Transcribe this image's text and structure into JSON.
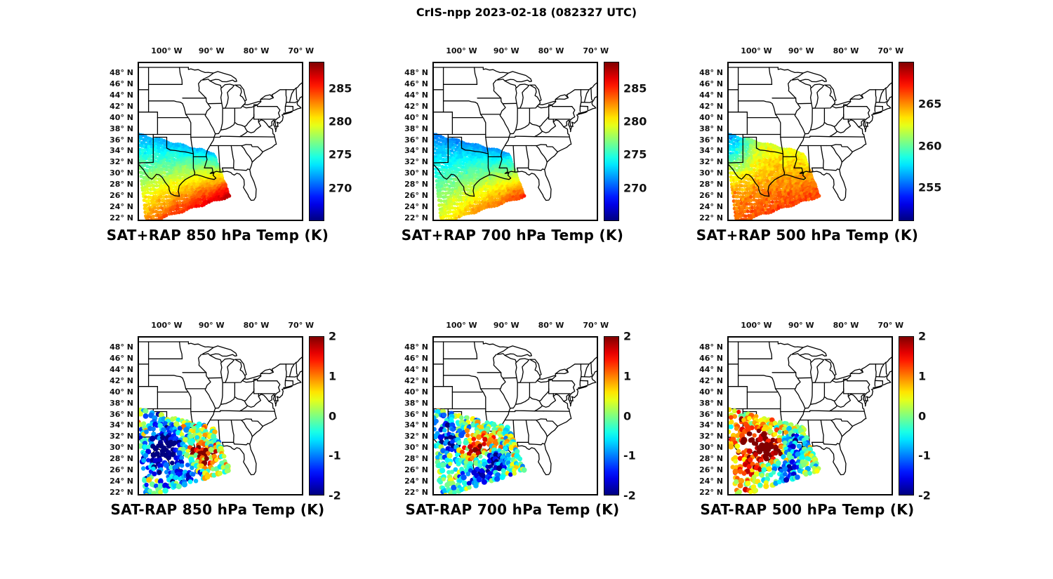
{
  "figure": {
    "title": "CrIS-npp 2023-02-18 (082327 UTC)",
    "background": "#ffffff",
    "colormap": "jet",
    "map_outline_color": "#000000",
    "text_color": "#111111"
  },
  "axes": {
    "lon_range": [
      -106.5,
      -69.5
    ],
    "lat_range": [
      21.5,
      50.0
    ],
    "lon_ticks": [
      {
        "lon": -100,
        "label": "100° W"
      },
      {
        "lon": -90,
        "label": "90° W"
      },
      {
        "lon": -80,
        "label": "80° W"
      },
      {
        "lon": -70,
        "label": "70° W"
      }
    ],
    "lat_ticks": [
      {
        "lat": 48,
        "label": "48° N"
      },
      {
        "lat": 46,
        "label": "46° N"
      },
      {
        "lat": 44,
        "label": "44° N"
      },
      {
        "lat": 42,
        "label": "42° N"
      },
      {
        "lat": 40,
        "label": "40° N"
      },
      {
        "lat": 38,
        "label": "38° N"
      },
      {
        "lat": 36,
        "label": "36° N"
      },
      {
        "lat": 34,
        "label": "34° N"
      },
      {
        "lat": 32,
        "label": "32° N"
      },
      {
        "lat": 30,
        "label": "30° N"
      },
      {
        "lat": 28,
        "label": "28° N"
      },
      {
        "lat": 26,
        "label": "26° N"
      },
      {
        "lat": 24,
        "label": "24° N"
      },
      {
        "lat": 22,
        "label": "22° N"
      }
    ]
  },
  "chart_data": [
    {
      "id": "sat_plus_rap_850",
      "type": "scatter-map",
      "seed": 11,
      "title": "SAT+RAP 850 hPa Temp (K)",
      "quantity": "SAT+RAP",
      "level_hPa": 850,
      "units": "K",
      "colorbar": {
        "min": 265,
        "max": 289,
        "tick_values": [
          285,
          280,
          275,
          270
        ],
        "tick_labels": [
          "285",
          "280",
          "275",
          "270"
        ],
        "increases": "upward"
      },
      "swath_corners_lonlat": [
        [
          -106.8,
          37.0
        ],
        [
          -89.6,
          33.6
        ],
        [
          -86.0,
          26.0
        ],
        [
          -104.5,
          21.3
        ]
      ],
      "field_model": {
        "kind": "gradient",
        "base_K": 272,
        "south_increase_K": 11,
        "southeast_increase_K": 4,
        "east_increase_K": 0.5,
        "nw_dip_K": 0,
        "noise_K": 0.7
      },
      "approx_values_K": {
        "north_edge": 272,
        "center": 278,
        "gulf_south": 287
      },
      "dots": {
        "cols": 34,
        "rows": 26,
        "radius_px": 2.6,
        "dropout": 0
      }
    },
    {
      "id": "sat_plus_rap_700",
      "type": "scatter-map",
      "seed": 23,
      "title": "SAT+RAP 700 hPa Temp (K)",
      "quantity": "SAT+RAP",
      "level_hPa": 700,
      "units": "K",
      "colorbar": {
        "min": 265,
        "max": 289,
        "tick_values": [
          285,
          280,
          275,
          270
        ],
        "tick_labels": [
          "285",
          "280",
          "275",
          "270"
        ],
        "increases": "upward"
      },
      "swath_corners_lonlat": [
        [
          -106.8,
          37.0
        ],
        [
          -89.6,
          33.6
        ],
        [
          -86.0,
          26.0
        ],
        [
          -104.5,
          21.3
        ]
      ],
      "field_model": {
        "kind": "gradient",
        "base_K": 271,
        "south_increase_K": 9,
        "southeast_increase_K": 4,
        "east_increase_K": 0.8,
        "nw_dip_K": 0,
        "noise_K": 0.7
      },
      "approx_values_K": {
        "north_edge": 271,
        "center": 276,
        "gulf_south": 284
      },
      "dots": {
        "cols": 34,
        "rows": 26,
        "radius_px": 2.6,
        "dropout": 0
      }
    },
    {
      "id": "sat_plus_rap_500",
      "type": "scatter-map",
      "seed": 37,
      "title": "SAT+RAP 500 hPa Temp (K)",
      "quantity": "SAT+RAP",
      "level_hPa": 500,
      "units": "K",
      "colorbar": {
        "min": 251,
        "max": 270,
        "tick_values": [
          265,
          260,
          255
        ],
        "tick_labels": [
          "265",
          "260",
          "255"
        ],
        "increases": "upward"
      },
      "swath_corners_lonlat": [
        [
          -106.8,
          37.0
        ],
        [
          -89.6,
          33.6
        ],
        [
          -86.0,
          26.0
        ],
        [
          -104.5,
          21.3
        ]
      ],
      "field_model": {
        "kind": "gradient",
        "base_K": 262.5,
        "south_increase_K": 3.5,
        "southeast_increase_K": 0.5,
        "east_increase_K": 0,
        "nw_dip_K": 6.5,
        "noise_K": 0.8
      },
      "approx_values_K": {
        "northwest_corner": 256,
        "center": 263,
        "south_edge": 266
      },
      "dots": {
        "cols": 34,
        "rows": 26,
        "radius_px": 2.6,
        "dropout": 0
      }
    },
    {
      "id": "sat_minus_rap_850",
      "type": "scatter-map",
      "seed": 41,
      "title": "SAT-RAP 850 hPa Temp (K)",
      "quantity": "SAT-RAP",
      "level_hPa": 850,
      "units": "K",
      "colorbar": {
        "min": -2,
        "max": 2,
        "tick_values": [
          2,
          1,
          0,
          -1,
          -2
        ],
        "tick_labels": [
          "2",
          "1",
          "0",
          "-1",
          "-2"
        ],
        "increases": "upward"
      },
      "swath_corners_lonlat": [
        [
          -106.8,
          37.0
        ],
        [
          -89.6,
          33.6
        ],
        [
          -86.0,
          26.0
        ],
        [
          -104.5,
          21.3
        ]
      ],
      "field_model": {
        "kind": "anomaly-blobs",
        "base_K": 0,
        "noise_K": 1.2,
        "blobs": [
          {
            "u": 0.72,
            "v": 0.52,
            "r": 0.16,
            "amp_K": 2.4
          },
          {
            "u": 0.78,
            "v": 0.75,
            "r": 0.14,
            "amp_K": 1.6
          },
          {
            "u": 0.38,
            "v": 0.45,
            "r": 0.22,
            "amp_K": -2.0
          },
          {
            "u": 0.15,
            "v": 0.6,
            "r": 0.2,
            "amp_K": -1.6
          },
          {
            "u": 0.5,
            "v": 0.9,
            "r": 0.25,
            "amp_K": -1.2
          },
          {
            "u": 0.3,
            "v": 0.2,
            "r": 0.2,
            "amp_K": -1.0
          }
        ]
      },
      "approx_values_K": {
        "range": [
          -2,
          2
        ],
        "red_cluster_lonlat": [
          -92.5,
          29.5
        ],
        "blue_area": "central and western swath"
      },
      "dots": {
        "cols": 30,
        "rows": 19,
        "radius_px": 3.6,
        "dropout": 0.3
      }
    },
    {
      "id": "sat_minus_rap_700",
      "type": "scatter-map",
      "seed": 53,
      "title": "SAT-RAP 700 hPa Temp (K)",
      "quantity": "SAT-RAP",
      "level_hPa": 700,
      "units": "K",
      "colorbar": {
        "min": -2,
        "max": 2,
        "tick_values": [
          2,
          1,
          0,
          -1,
          -2
        ],
        "tick_labels": [
          "2",
          "1",
          "0",
          "-1",
          "-2"
        ],
        "increases": "upward"
      },
      "swath_corners_lonlat": [
        [
          -106.8,
          37.0
        ],
        [
          -89.6,
          33.6
        ],
        [
          -86.0,
          26.0
        ],
        [
          -104.5,
          21.3
        ]
      ],
      "field_model": {
        "kind": "anomaly-blobs",
        "base_K": 0,
        "noise_K": 1.1,
        "blobs": [
          {
            "u": 0.45,
            "v": 0.5,
            "r": 0.18,
            "amp_K": 2.2
          },
          {
            "u": 0.68,
            "v": 0.42,
            "r": 0.14,
            "amp_K": 1.4
          },
          {
            "u": 0.72,
            "v": 0.62,
            "r": 0.16,
            "amp_K": -2.0
          },
          {
            "u": 0.25,
            "v": 0.45,
            "r": 0.2,
            "amp_K": -1.2
          },
          {
            "u": 0.5,
            "v": 0.85,
            "r": 0.22,
            "amp_K": -1.6
          },
          {
            "u": 0.15,
            "v": 0.25,
            "r": 0.18,
            "amp_K": -1.4
          }
        ]
      },
      "approx_values_K": {
        "range": [
          -2,
          2
        ],
        "red_cluster_lonlat": [
          -97.5,
          29.5
        ],
        "blue_area": "coastal east and south of swath"
      },
      "dots": {
        "cols": 30,
        "rows": 19,
        "radius_px": 3.6,
        "dropout": 0.3
      }
    },
    {
      "id": "sat_minus_rap_500",
      "type": "scatter-map",
      "seed": 67,
      "title": "SAT-RAP 500 hPa Temp (K)",
      "quantity": "SAT-RAP",
      "level_hPa": 500,
      "units": "K",
      "colorbar": {
        "min": -2,
        "max": 2,
        "tick_values": [
          2,
          1,
          0,
          -1,
          -2
        ],
        "tick_labels": [
          "2",
          "1",
          "0",
          "-1",
          "-2"
        ],
        "increases": "upward"
      },
      "swath_corners_lonlat": [
        [
          -106.8,
          37.0
        ],
        [
          -89.6,
          33.6
        ],
        [
          -86.0,
          26.0
        ],
        [
          -104.5,
          21.3
        ]
      ],
      "field_model": {
        "kind": "anomaly-blobs",
        "base_K": 0.3,
        "noise_K": 1.0,
        "blobs": [
          {
            "u": 0.35,
            "v": 0.35,
            "r": 0.25,
            "amp_K": 1.8
          },
          {
            "u": 0.55,
            "v": 0.5,
            "r": 0.15,
            "amp_K": 2.0
          },
          {
            "u": 0.78,
            "v": 0.45,
            "r": 0.16,
            "amp_K": -2.2
          },
          {
            "u": 0.65,
            "v": 0.85,
            "r": 0.2,
            "amp_K": -1.8
          },
          {
            "u": 0.15,
            "v": 0.7,
            "r": 0.2,
            "amp_K": 0.8
          },
          {
            "u": 0.9,
            "v": 0.2,
            "r": 0.15,
            "amp_K": -1.0
          }
        ]
      },
      "approx_values_K": {
        "range": [
          -2,
          2
        ],
        "warm_cluster_lonlat": [
          -98.0,
          31.0
        ],
        "cold_cluster_lonlat": [
          -90.5,
          29.5
        ]
      },
      "dots": {
        "cols": 30,
        "rows": 19,
        "radius_px": 3.6,
        "dropout": 0.3
      }
    }
  ]
}
